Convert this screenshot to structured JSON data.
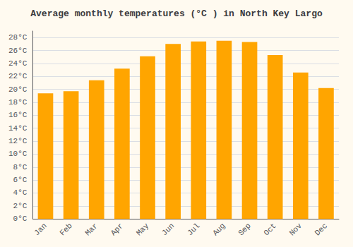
{
  "chart_data": {
    "type": "bar",
    "title": "Average monthly temperatures (°C ) in North Key Largo",
    "categories": [
      "Jan",
      "Feb",
      "Mar",
      "Apr",
      "May",
      "Jun",
      "Jul",
      "Aug",
      "Sep",
      "Oct",
      "Nov",
      "Dec"
    ],
    "values": [
      19.4,
      19.7,
      21.4,
      23.2,
      25.1,
      27.0,
      27.4,
      27.5,
      27.3,
      25.3,
      22.6,
      20.2
    ],
    "color": "#FFA500",
    "ylim": [
      0,
      29
    ],
    "yticks": [
      {
        "value": 0,
        "label": "0°C"
      },
      {
        "value": 2,
        "label": "2°C"
      },
      {
        "value": 4,
        "label": "4°C"
      },
      {
        "value": 6,
        "label": "6°C"
      },
      {
        "value": 8,
        "label": "8°C"
      },
      {
        "value": 10,
        "label": "10°C"
      },
      {
        "value": 12,
        "label": "12°C"
      },
      {
        "value": 14,
        "label": "14°C"
      },
      {
        "value": 16,
        "label": "16°C"
      },
      {
        "value": 18,
        "label": "18°C"
      },
      {
        "value": 20,
        "label": "20°C"
      },
      {
        "value": 22,
        "label": "22°C"
      },
      {
        "value": 24,
        "label": "24°C"
      },
      {
        "value": 26,
        "label": "26°C"
      },
      {
        "value": 28,
        "label": "28°C"
      }
    ],
    "grid": true
  }
}
